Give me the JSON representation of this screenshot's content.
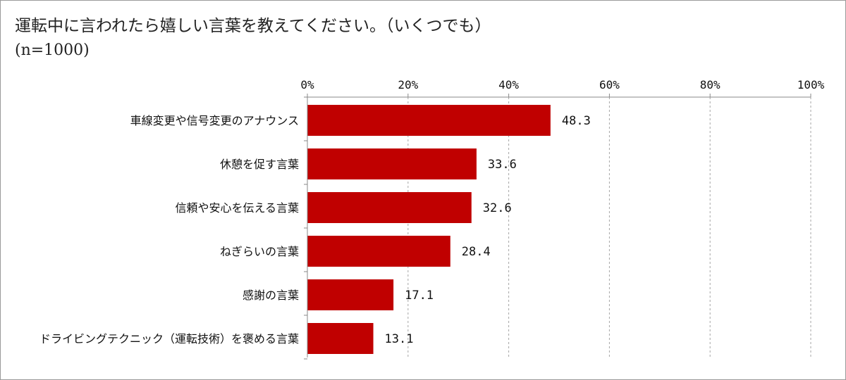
{
  "chart_data": {
    "type": "bar",
    "orientation": "horizontal",
    "title": "運転中に言われたら嬉しい言葉を教えてください。（いくつでも）",
    "subtitle": "(n=1000)",
    "categories": [
      "車線変更や信号変更のアナウンス",
      "休憩を促す言葉",
      "信頼や安心を伝える言葉",
      "ねぎらいの言葉",
      "感謝の言葉",
      "ドライビングテクニック（運転技術）を褒める言葉"
    ],
    "values": [
      48.3,
      33.6,
      32.6,
      28.4,
      17.1,
      13.1
    ],
    "value_labels": [
      "48.3",
      "33.6",
      "32.6",
      "28.4",
      "17.1",
      "13.1"
    ],
    "xlim": [
      0,
      100
    ],
    "x_ticks": [
      "0%",
      "20%",
      "40%",
      "60%",
      "80%",
      "100%"
    ],
    "grid": true,
    "legend": "none",
    "bar_color": "#c00000"
  }
}
